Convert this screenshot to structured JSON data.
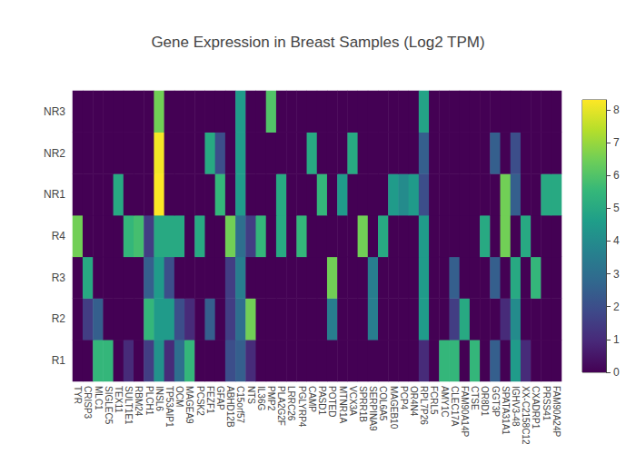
{
  "chart_data": {
    "type": "heatmap",
    "title": "Gene Expression in Breast Samples (Log2 TPM)",
    "x": [
      "TYR",
      "CRISP3",
      "MLC1",
      "SIGLEC5",
      "TEX11",
      "SULT1E1",
      "RBM24",
      "PLCH1",
      "INSL6",
      "TP53AIP1",
      "OCM",
      "MAGEA9",
      "PCSK2",
      "FEZF1",
      "GFAP",
      "ABHD12B",
      "C15orf57",
      "NTS",
      "IL36G",
      "PMP2",
      "PLA2G2F",
      "LRRC26",
      "PGLYRP4",
      "CAMP",
      "PASD1",
      "POTED",
      "MTNR1A",
      "VCX3A",
      "SPRR1B",
      "SERPINA9",
      "COL6A5",
      "MAGEB10",
      "PCP4",
      "OR4N4",
      "RPL7P26",
      "FCRL5",
      "AMY1C",
      "CLEC17A",
      "FAM90A14P",
      "CTSE",
      "OR8D1",
      "GGT3P",
      "SPATA31A1",
      "IGHV3-48",
      "XX-C2158C12",
      "CXADRP1",
      "PRSS41",
      "FAM90A24P"
    ],
    "y": [
      "R1",
      "R2",
      "R3",
      "R4",
      "NR1",
      "NR2",
      "NR3"
    ],
    "values": [
      [
        0,
        0,
        5.5,
        5.5,
        0,
        1,
        0,
        1.5,
        4.2,
        1,
        3,
        5.5,
        0,
        0,
        0,
        2,
        2.5,
        1,
        0,
        0,
        0,
        0,
        0,
        0,
        0,
        0,
        0,
        0,
        0,
        0,
        0,
        0,
        0,
        0,
        1,
        0,
        5.5,
        5.5,
        0,
        5.5,
        0,
        2.5,
        0,
        4.5,
        1,
        0,
        0,
        0
      ],
      [
        0,
        1.5,
        2.5,
        0,
        0,
        0,
        0,
        5.5,
        4.5,
        4.5,
        2,
        1,
        0,
        2.5,
        0,
        1.5,
        3,
        6.5,
        0,
        0,
        0,
        0,
        0,
        0,
        0,
        3.5,
        0,
        0,
        0,
        3.5,
        0,
        0,
        0,
        0,
        4.5,
        0,
        0,
        1.5,
        5,
        0,
        0,
        0,
        1,
        4,
        0,
        0,
        0,
        0
      ],
      [
        0,
        5,
        0,
        0,
        0,
        0,
        0,
        2.5,
        4.5,
        2,
        0,
        0,
        0,
        0,
        0,
        1.5,
        3.5,
        0,
        0,
        0,
        0,
        0,
        0,
        0,
        0,
        6.5,
        0,
        0,
        0,
        3.5,
        0,
        0,
        0,
        0,
        4.5,
        0,
        0,
        2.5,
        0,
        0,
        0,
        2.5,
        0,
        5,
        0,
        5.5,
        0,
        0
      ],
      [
        6.5,
        0,
        0,
        0,
        0,
        5.5,
        5.8,
        1.5,
        5,
        5,
        5,
        0,
        5,
        0,
        0,
        6.5,
        3,
        1.5,
        5.5,
        0,
        5,
        0,
        5.5,
        0,
        0,
        0,
        0,
        0,
        6.5,
        0,
        5,
        0,
        0,
        0,
        4.5,
        0,
        0,
        0,
        0,
        0,
        5,
        0,
        6.5,
        0,
        5,
        0,
        0,
        0
      ],
      [
        0,
        0,
        0,
        0,
        5,
        0,
        0,
        0,
        8.3,
        0,
        0,
        0,
        0,
        0,
        5.5,
        0,
        4.5,
        0,
        0,
        0,
        5,
        0,
        0,
        0,
        5.5,
        0,
        4.5,
        0,
        0,
        0,
        0,
        4.5,
        4,
        4.5,
        2,
        0,
        0,
        0,
        0,
        0,
        0,
        0,
        6.5,
        2.5,
        0,
        0,
        5,
        5
      ],
      [
        0,
        0,
        0,
        0,
        0,
        0,
        0,
        0,
        8.2,
        0,
        0,
        0,
        0,
        5,
        2,
        0,
        4.5,
        0,
        0,
        0,
        0,
        0,
        0,
        5,
        0,
        0,
        0,
        5,
        0,
        0,
        0,
        0,
        0,
        0,
        2.5,
        0,
        0,
        0,
        0,
        0,
        0,
        2.5,
        0,
        2,
        0,
        0,
        0,
        0
      ],
      [
        0,
        0,
        0,
        0,
        0,
        0,
        0,
        0,
        6.5,
        0,
        0,
        0,
        0,
        0,
        0,
        0,
        4.5,
        0,
        0,
        6,
        0,
        0,
        0,
        0,
        0,
        0,
        0,
        0,
        0,
        0,
        0,
        0,
        0,
        0,
        4.8,
        0,
        0,
        0,
        0,
        0,
        0,
        0,
        0,
        0,
        0,
        0,
        0,
        0
      ]
    ],
    "colorbar": {
      "range": [
        0,
        8.3
      ],
      "ticks": [
        0,
        1,
        2,
        3,
        4,
        5,
        6,
        7,
        8
      ]
    }
  }
}
